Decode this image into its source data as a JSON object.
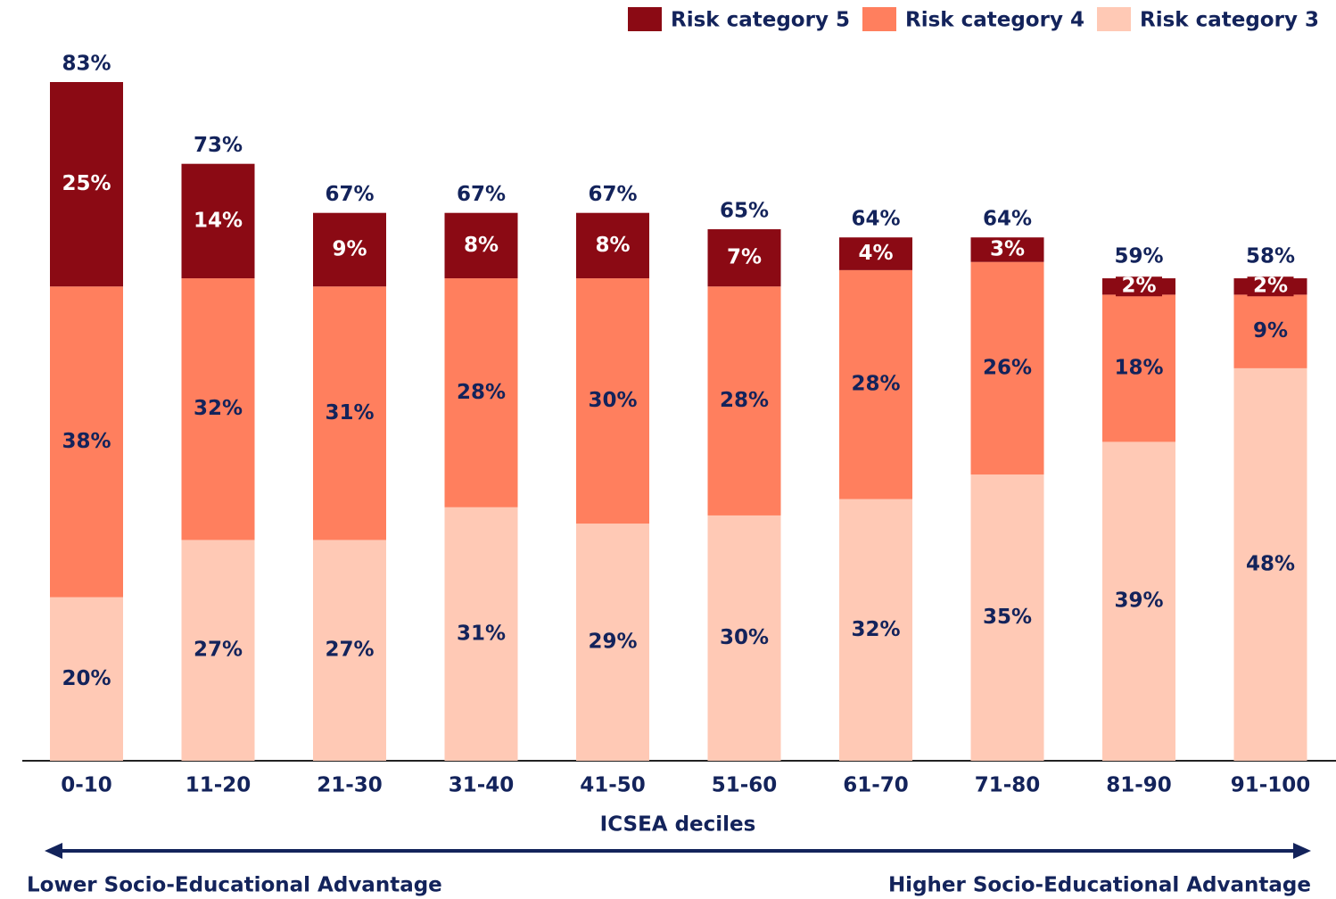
{
  "chart_data": {
    "type": "stacked_bar",
    "x_label": "ICSEA deciles",
    "categories": [
      "0-10",
      "11-20",
      "21-30",
      "31-40",
      "41-50",
      "51-60",
      "61-70",
      "71-80",
      "81-90",
      "91-100"
    ],
    "series": [
      {
        "name": "Risk category 5",
        "color": "#8b0a14",
        "values": [
          25,
          14,
          9,
          8,
          8,
          7,
          4,
          3,
          2,
          2
        ],
        "value_labels": [
          "25%",
          "14%",
          "9%",
          "8%",
          "8%",
          "7%",
          "4%",
          "3%",
          "2%",
          "2%"
        ]
      },
      {
        "name": "Risk category 4",
        "color": "#ff7f5e",
        "values": [
          38,
          32,
          31,
          28,
          30,
          28,
          28,
          26,
          18,
          9
        ],
        "value_labels": [
          "38%",
          "32%",
          "31%",
          "28%",
          "30%",
          "28%",
          "28%",
          "26%",
          "18%",
          "9%"
        ]
      },
      {
        "name": "Risk category 3",
        "color": "#ffc9b5",
        "values": [
          20,
          27,
          27,
          31,
          29,
          30,
          32,
          35,
          39,
          48
        ],
        "value_labels": [
          "20%",
          "27%",
          "27%",
          "31%",
          "29%",
          "30%",
          "32%",
          "35%",
          "39%",
          "48%"
        ]
      }
    ],
    "totals": [
      83,
      73,
      67,
      67,
      67,
      65,
      64,
      64,
      59,
      58
    ],
    "total_labels": [
      "83%",
      "73%",
      "67%",
      "67%",
      "67%",
      "65%",
      "64%",
      "64%",
      "59%",
      "58%"
    ],
    "annotations": [
      "Lower Socio-Educational Advantage",
      "Higher Socio-Educational Advantage"
    ],
    "legend": "top-right"
  }
}
